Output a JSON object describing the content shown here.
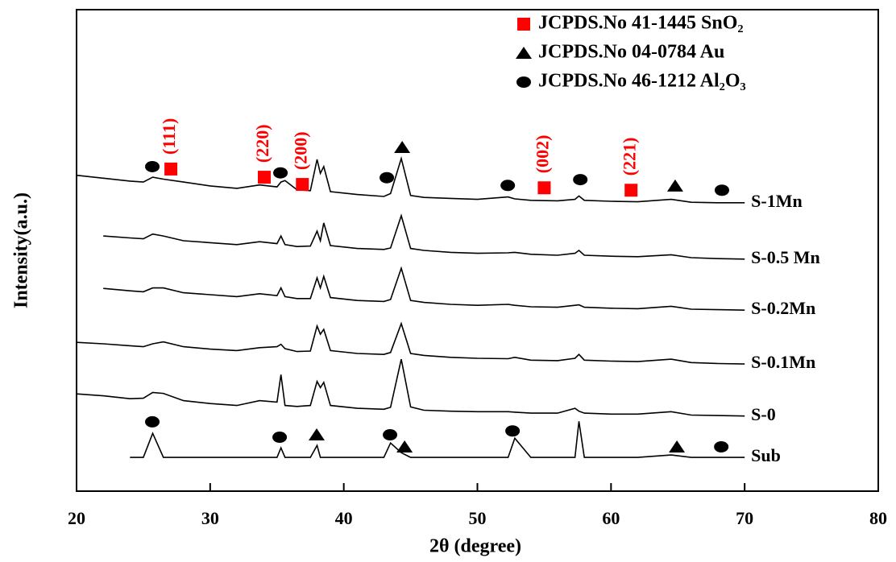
{
  "chart_data": {
    "type": "line",
    "xlabel": "2θ (degree)",
    "ylabel": "Intensity(a.u.)",
    "xlim": [
      20,
      80
    ],
    "xticks": [
      20,
      30,
      40,
      50,
      60,
      70,
      80
    ],
    "ylim": [
      0,
      100
    ],
    "x": [
      20,
      22,
      24,
      25,
      25.7,
      26.5,
      28,
      30,
      32,
      33.7,
      35,
      35.3,
      35.6,
      36.5,
      37.5,
      38,
      38.25,
      38.5,
      39,
      41,
      43,
      43.5,
      44.3,
      45,
      46,
      48,
      50,
      52.3,
      52.8,
      54,
      56,
      57.3,
      57.6,
      58,
      60,
      62,
      64.5,
      66,
      68,
      70
    ],
    "series": [
      {
        "name": "S-1Mn",
        "color": "#000000",
        "values": [
          65.6,
          65,
          64.4,
          64.2,
          65.2,
          64.8,
          64.2,
          63.4,
          62.9,
          63.6,
          63.2,
          64.2,
          64.5,
          62.6,
          62.4,
          68.9,
          66,
          67.4,
          62.2,
          61.6,
          61.2,
          61.8,
          69.1,
          61.4,
          61,
          60.8,
          60.6,
          61.1,
          60.7,
          60.4,
          60.3,
          60.6,
          61.3,
          60.4,
          60.2,
          60.1,
          60.6,
          60,
          59.9,
          59.9
        ]
      },
      {
        "name": "S-0.5 Mn",
        "color": "#000000",
        "values": [
          null,
          53,
          52.6,
          52.4,
          53.4,
          53,
          52,
          51.6,
          51.2,
          51.8,
          51.4,
          53,
          51.2,
          50.8,
          50.9,
          54,
          52,
          55.7,
          51,
          50.4,
          50.2,
          50.5,
          57.2,
          50.4,
          50,
          49.6,
          49.4,
          49.5,
          49.6,
          49.2,
          49,
          49.4,
          50,
          49,
          48.8,
          48.7,
          49.1,
          48.5,
          48.3,
          48.2
        ]
      },
      {
        "name": "S-0.2Mn",
        "color": "#000000",
        "values": [
          null,
          42.1,
          41.6,
          41.4,
          42.2,
          42.2,
          41.2,
          40.8,
          40.4,
          41,
          40.6,
          42.2,
          40.4,
          40,
          40,
          44.3,
          42.2,
          44.6,
          40.2,
          39.6,
          39.4,
          39.8,
          46.3,
          39.6,
          39.2,
          38.8,
          38.6,
          38.8,
          38.6,
          38.3,
          38.2,
          38.6,
          38.7,
          38.2,
          38,
          37.9,
          38.4,
          37.8,
          37.7,
          37.6
        ]
      },
      {
        "name": "S-0.1Mn",
        "color": "#000000",
        "values": [
          30.9,
          30.6,
          30.2,
          30,
          30.6,
          31,
          30,
          29.5,
          29.2,
          29.8,
          30,
          30.5,
          29.6,
          29,
          29.1,
          34.3,
          32.6,
          33.6,
          29.2,
          28.6,
          28.4,
          28.8,
          34.8,
          28.6,
          28.2,
          27.8,
          27.6,
          27.5,
          27.8,
          27.2,
          27.1,
          27.6,
          28.4,
          27.2,
          27,
          26.9,
          27.4,
          26.7,
          26.5,
          26.4
        ]
      },
      {
        "name": "S-0",
        "color": "#000000",
        "values": [
          20.2,
          19.8,
          19.2,
          19.3,
          20.5,
          20.3,
          18.8,
          18.2,
          17.8,
          18.8,
          18.5,
          24.2,
          17.8,
          17.6,
          17.8,
          22.8,
          21.5,
          22.6,
          17.8,
          17.2,
          17,
          17.4,
          27.4,
          17.5,
          16.8,
          16.6,
          16.5,
          16.5,
          16.4,
          16.2,
          16.2,
          17.2,
          16.6,
          16.2,
          16,
          16,
          16.5,
          15.8,
          15.7,
          15.6
        ]
      },
      {
        "name": "Sub",
        "color": "#000000",
        "values": [
          null,
          null,
          7,
          7,
          12,
          7,
          7,
          7,
          7,
          7,
          7,
          9,
          7,
          7,
          7,
          9.5,
          7,
          7,
          7,
          7,
          7,
          10,
          8,
          7,
          7,
          7,
          7,
          7,
          11,
          7,
          7,
          7,
          14.5,
          7,
          7,
          7,
          7.5,
          7,
          7,
          7
        ]
      }
    ],
    "legend": [
      {
        "marker": "square",
        "color": "#ff0000",
        "label": "JCPDS.No 41-1445 SnO₂"
      },
      {
        "marker": "triangle",
        "color": "#000000",
        "label": "JCPDS.No 04-0784 Au"
      },
      {
        "marker": "circle",
        "color": "#000000",
        "label": "JCPDS.No 46-1212 Al₂O₃"
      }
    ],
    "annotations": [
      {
        "marker": "square",
        "color": "#ff0000",
        "x": 27.06,
        "y": 66.9,
        "label": "(111)"
      },
      {
        "marker": "square",
        "color": "#ff0000",
        "x": 34.05,
        "y": 65.2,
        "label": "(220)"
      },
      {
        "marker": "square",
        "color": "#ff0000",
        "x": 36.9,
        "y": 63.7,
        "label": "(200)"
      },
      {
        "marker": "square",
        "color": "#ff0000",
        "x": 55.0,
        "y": 63.0,
        "label": "(002)"
      },
      {
        "marker": "square",
        "color": "#ff0000",
        "x": 61.5,
        "y": 62.5,
        "label": "(221)"
      },
      {
        "marker": "circle",
        "color": "#000000",
        "x": 25.67,
        "y": 67.4
      },
      {
        "marker": "circle",
        "color": "#000000",
        "x": 35.26,
        "y": 66.1
      },
      {
        "marker": "circle",
        "color": "#000000",
        "x": 43.22,
        "y": 65.1
      },
      {
        "marker": "circle",
        "color": "#000000",
        "x": 52.27,
        "y": 63.5
      },
      {
        "marker": "circle",
        "color": "#000000",
        "x": 57.7,
        "y": 64.7
      },
      {
        "marker": "circle",
        "color": "#000000",
        "x": 68.3,
        "y": 62.5
      },
      {
        "marker": "circle",
        "color": "#000000",
        "x": 25.67,
        "y": 14.4
      },
      {
        "marker": "circle",
        "color": "#000000",
        "x": 35.2,
        "y": 11.2
      },
      {
        "marker": "circle",
        "color": "#000000",
        "x": 43.46,
        "y": 11.7
      },
      {
        "marker": "circle",
        "color": "#000000",
        "x": 52.63,
        "y": 12.5
      },
      {
        "marker": "circle",
        "color": "#000000",
        "x": 68.25,
        "y": 9.2
      },
      {
        "marker": "triangle",
        "color": "#000000",
        "x": 44.37,
        "y": 71.4
      },
      {
        "marker": "triangle",
        "color": "#000000",
        "x": 64.8,
        "y": 63.4
      },
      {
        "marker": "triangle",
        "color": "#000000",
        "x": 37.97,
        "y": 11.7
      },
      {
        "marker": "triangle",
        "color": "#000000",
        "x": 44.55,
        "y": 9.2
      },
      {
        "marker": "triangle",
        "color": "#000000",
        "x": 64.93,
        "y": 9.2
      }
    ]
  }
}
